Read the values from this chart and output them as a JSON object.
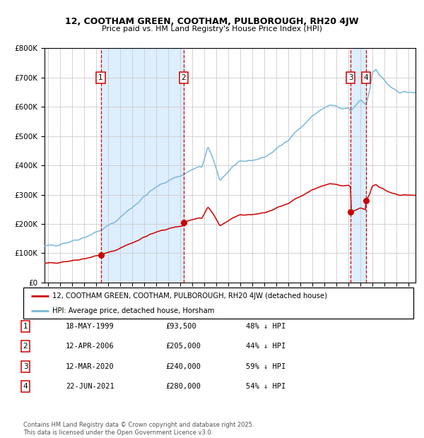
{
  "title_line1": "12, COOTHAM GREEN, COOTHAM, PULBOROUGH, RH20 4JW",
  "title_line2": "Price paid vs. HM Land Registry's House Price Index (HPI)",
  "legend_red": "12, COOTHAM GREEN, COOTHAM, PULBOROUGH, RH20 4JW (detached house)",
  "legend_blue": "HPI: Average price, detached house, Horsham",
  "footer": "Contains HM Land Registry data © Crown copyright and database right 2025.\nThis data is licensed under the Open Government Licence v3.0.",
  "table": [
    {
      "num": "1",
      "date": "18-MAY-1999",
      "price": "£93,500",
      "pct": "48% ↓ HPI"
    },
    {
      "num": "2",
      "date": "12-APR-2006",
      "price": "£205,000",
      "pct": "44% ↓ HPI"
    },
    {
      "num": "3",
      "date": "12-MAR-2020",
      "price": "£240,000",
      "pct": "59% ↓ HPI"
    },
    {
      "num": "4",
      "date": "22-JUN-2021",
      "price": "£280,000",
      "pct": "54% ↓ HPI"
    }
  ],
  "sale_dates_num": [
    1999.38,
    2006.28,
    2020.19,
    2021.47
  ],
  "sale_prices": [
    93500,
    205000,
    240000,
    280000
  ],
  "vline_dates_num": [
    1999.38,
    2006.28,
    2020.19,
    2021.47
  ],
  "label_nums": [
    "1",
    "2",
    "3",
    "4"
  ],
  "red_color": "#cc0000",
  "blue_color": "#7ab8d9",
  "shade_color": "#ddeeff",
  "grid_color": "#cccccc",
  "ylim": [
    0,
    800000
  ],
  "yticks": [
    0,
    100000,
    200000,
    300000,
    400000,
    500000,
    600000,
    700000,
    800000
  ],
  "ytick_labels": [
    "£0",
    "£100K",
    "£200K",
    "£300K",
    "£400K",
    "£500K",
    "£600K",
    "£700K",
    "£800K"
  ],
  "xstart": 1994.7,
  "xend": 2025.6
}
